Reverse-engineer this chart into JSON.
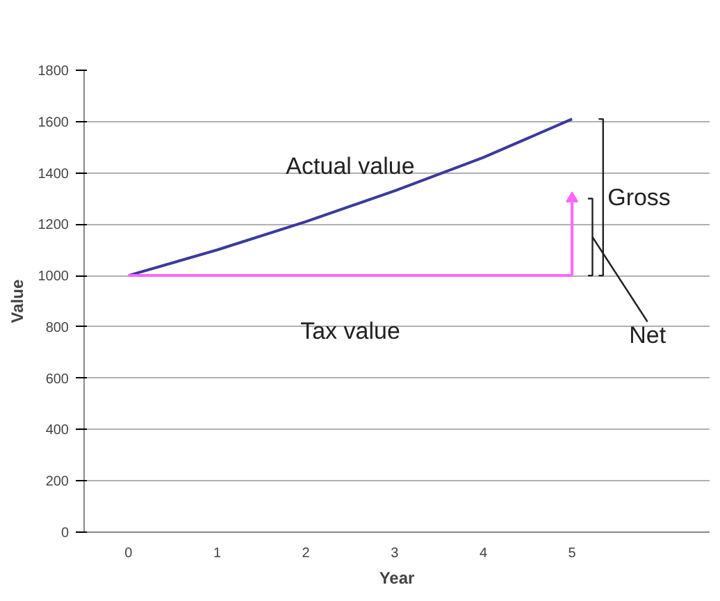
{
  "chart_data": {
    "type": "line",
    "xlabel": "Year",
    "ylabel": "Value",
    "categories": [
      "0",
      "1",
      "2",
      "3",
      "4",
      "5"
    ],
    "series": [
      {
        "name": "Actual value",
        "color": "#3a3a9e",
        "values": [
          1000,
          1100,
          1210,
          1330,
          1460,
          1610
        ]
      },
      {
        "name": "Tax value",
        "color": "#ff66ff",
        "values": [
          1000,
          1000,
          1000,
          1000,
          1000,
          1000
        ]
      },
      {
        "x": [
          "5",
          "5"
        ],
        "color": "#ff66ff",
        "values": [
          1000,
          1300
        ],
        "marker": "triangle"
      }
    ],
    "ylim": [
      0,
      1800
    ],
    "yticks": [
      0,
      200,
      400,
      600,
      800,
      1000,
      1200,
      1400,
      1600,
      1800
    ],
    "grid": "y",
    "marker": "none",
    "line_style": "solid",
    "annotations": [
      "Gross",
      "Net"
    ]
  }
}
